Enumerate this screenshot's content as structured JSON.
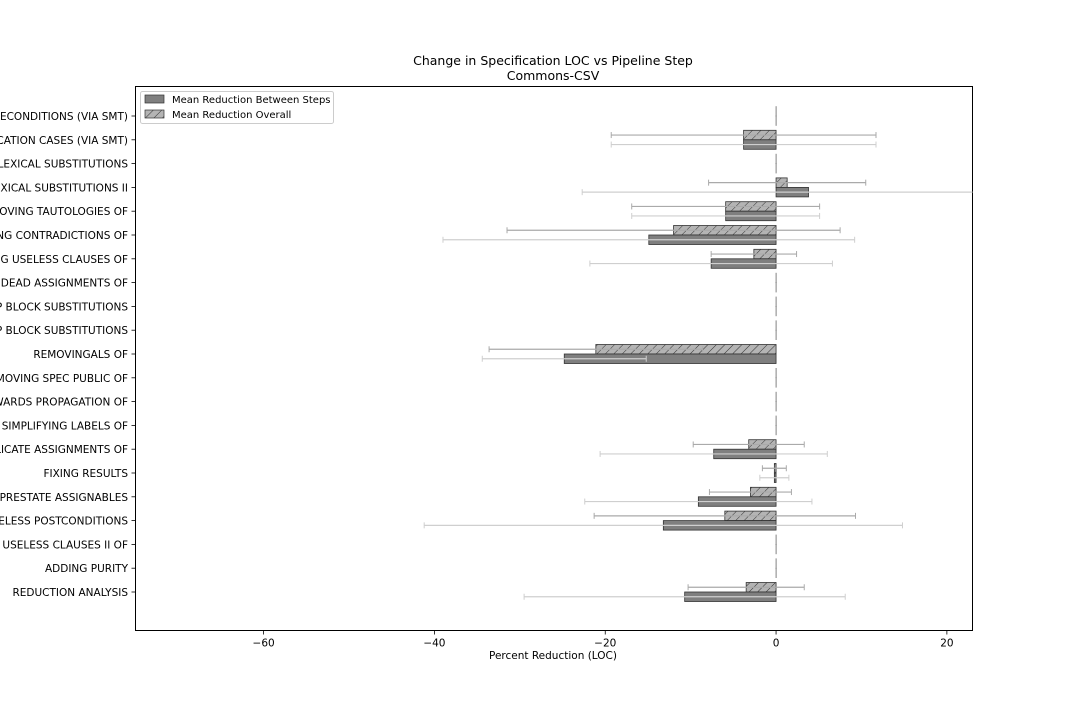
{
  "chart_data": {
    "type": "bar",
    "orientation": "horizontal",
    "title": "Change in Specification LOC vs Pipeline Step",
    "subtitle": "Commons-CSV",
    "xlabel": "Percent Reduction (LOC)",
    "ylabel": "",
    "xlim": [
      -75,
      23
    ],
    "xticks": [
      -60,
      -40,
      -20,
      0,
      20
    ],
    "grid": false,
    "legend_position": "top-left",
    "categories": [
      "RECONDITIONS (VIA SMT)",
      "ICATION CASES (VIA SMT)",
      "S LEXICAL SUBSTITUTIONS",
      "LEXICAL SUBSTITUTIONS II",
      "MOVING TAUTOLOGIES OF",
      "ING CONTRADICTIONS OF",
      "NG USELESS CLAUSES OF",
      "G DEAD ASSIGNMENTS OF",
      "AP BLOCK SUBSTITUTIONS",
      "AP BLOCK SUBSTITUTIONS",
      "REMOVINGALS OF",
      "EMOVING SPEC PUBLIC OF",
      "WARDS PROPAGATION OF",
      "SIMPLIFYING LABELS OF",
      "PLICATE ASSIGNMENTS OF",
      "FIXING RESULTS",
      "S PRESTATE ASSIGNABLES",
      "SELESS POSTCONDITIONS",
      "G USELESS CLAUSES II OF",
      "ADDING PURITY",
      "REDUCTION ANALYSIS"
    ],
    "series": [
      {
        "name": "Mean Reduction Overall",
        "color": "#b4b4b4",
        "hatch": "diagonal",
        "values": [
          0,
          -3.8,
          0,
          1.3,
          -5.9,
          -12.0,
          -2.6,
          0,
          0,
          0,
          -21.1,
          0,
          0,
          0,
          -3.2,
          -0.2,
          -3.0,
          -6.0,
          0,
          0,
          -3.5
        ],
        "error": [
          0,
          15.5,
          0,
          9.2,
          11.0,
          19.5,
          5.0,
          0,
          0,
          0,
          12.5,
          0,
          0,
          0,
          6.5,
          1.4,
          4.8,
          15.3,
          0,
          0,
          6.8
        ]
      },
      {
        "name": "Mean Reduction Between Steps",
        "color": "#7f7f7f",
        "hatch": "none",
        "values": [
          0,
          -3.8,
          0,
          3.8,
          -5.9,
          -14.9,
          -7.6,
          0,
          0,
          0,
          -24.8,
          0,
          0,
          0,
          -7.3,
          -0.2,
          -9.1,
          -13.2,
          0,
          0,
          -10.7
        ],
        "error": [
          0,
          15.5,
          0,
          26.5,
          11.0,
          24.1,
          14.2,
          0,
          0,
          0,
          9.6,
          0,
          0,
          0,
          13.3,
          1.7,
          13.3,
          28.0,
          0,
          0,
          18.8
        ]
      }
    ],
    "legend_order": [
      "Mean Reduction Between Steps",
      "Mean Reduction Overall"
    ]
  }
}
